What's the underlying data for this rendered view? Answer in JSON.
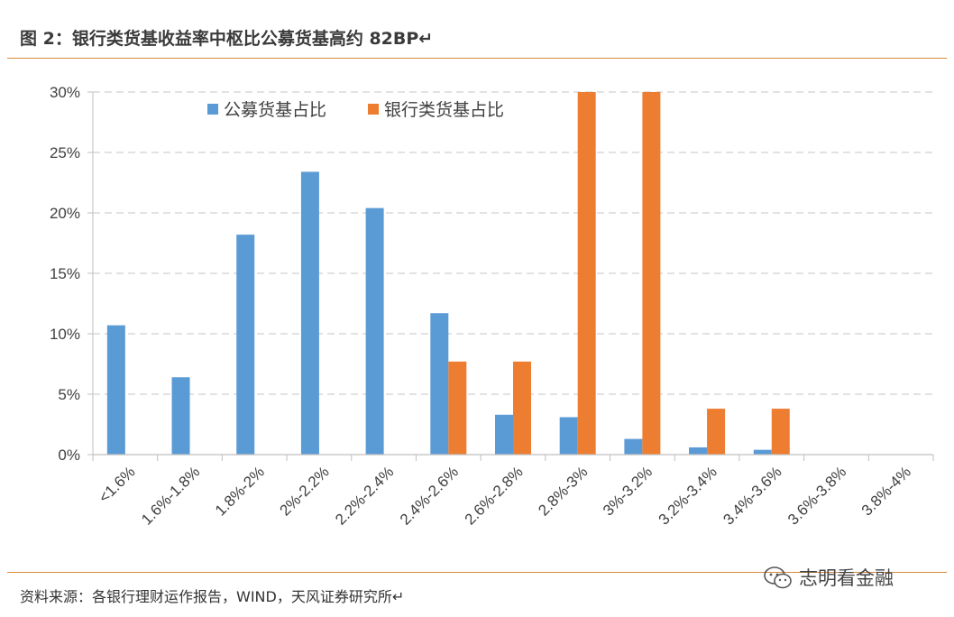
{
  "header": {
    "title": "图 2：银行类货基收益率中枢比公募货基高约 82BP↵"
  },
  "footer": {
    "source": "资料来源：各银行理财运作报告，WIND，天风证券研究所↵",
    "watermark_text": "志明看金融",
    "watermark_icon": "wechat-icon"
  },
  "colors": {
    "series_public": "#5b9bd5",
    "series_bank": "#ed7d31",
    "grid": "#d9d9d9",
    "axis": "#bfbfbf",
    "rule": "#d98a3c"
  },
  "chart_data": {
    "type": "bar",
    "title": "",
    "xlabel": "",
    "ylabel": "",
    "ylim": [
      0,
      30
    ],
    "yticks": [
      "0%",
      "5%",
      "10%",
      "15%",
      "20%",
      "25%",
      "30%"
    ],
    "grid": true,
    "legend_position": "top-center",
    "categories": [
      "<1.6%",
      "1.6%-1.8%",
      "1.8%-2%",
      "2%-2.2%",
      "2.2%-2.4%",
      "2.4%-2.6%",
      "2.6%-2.8%",
      "2.8%-3%",
      "3%-3.2%",
      "3.2%-3.4%",
      "3.4%-3.6%",
      "3.6%-3.8%",
      "3.8%-4%"
    ],
    "series": [
      {
        "name": "公募货基占比",
        "color": "#5b9bd5",
        "values": [
          10.7,
          6.4,
          18.2,
          23.4,
          20.4,
          11.7,
          3.3,
          3.1,
          1.3,
          0.6,
          0.4,
          0,
          0
        ]
      },
      {
        "name": "银行类货基占比",
        "color": "#ed7d31",
        "values": [
          0,
          0,
          0,
          0,
          0,
          7.7,
          7.7,
          30,
          30,
          3.8,
          3.8,
          0,
          0
        ]
      }
    ]
  }
}
